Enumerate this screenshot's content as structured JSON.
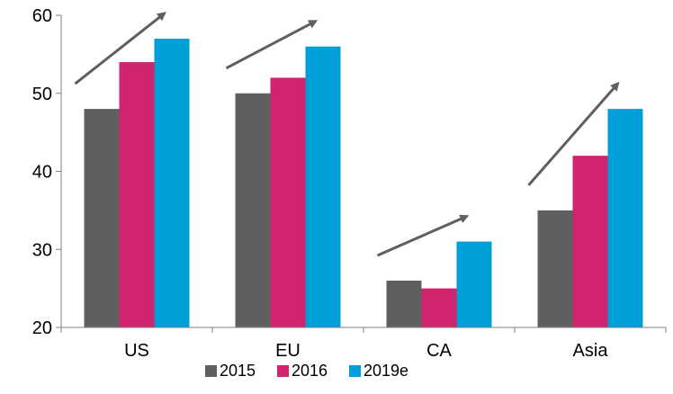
{
  "chart_data": {
    "type": "bar",
    "categories": [
      "US",
      "EU",
      "CA",
      "Asia"
    ],
    "series": [
      {
        "name": "2015",
        "color": "#5f5f5f",
        "values": [
          48,
          50,
          26,
          35
        ]
      },
      {
        "name": "2016",
        "color": "#d2236f",
        "values": [
          54,
          52,
          25,
          42
        ]
      },
      {
        "name": "2019e",
        "color": "#019fda",
        "values": [
          57,
          56,
          31,
          48
        ]
      }
    ],
    "ylim": [
      20,
      60
    ],
    "yticks": [
      "20",
      "30",
      "40",
      "50",
      "60"
    ],
    "legend": "bottom",
    "grid": false,
    "annotations": "upward trend arrow above each category group",
    "arrow_color": "#5f5f5f"
  }
}
